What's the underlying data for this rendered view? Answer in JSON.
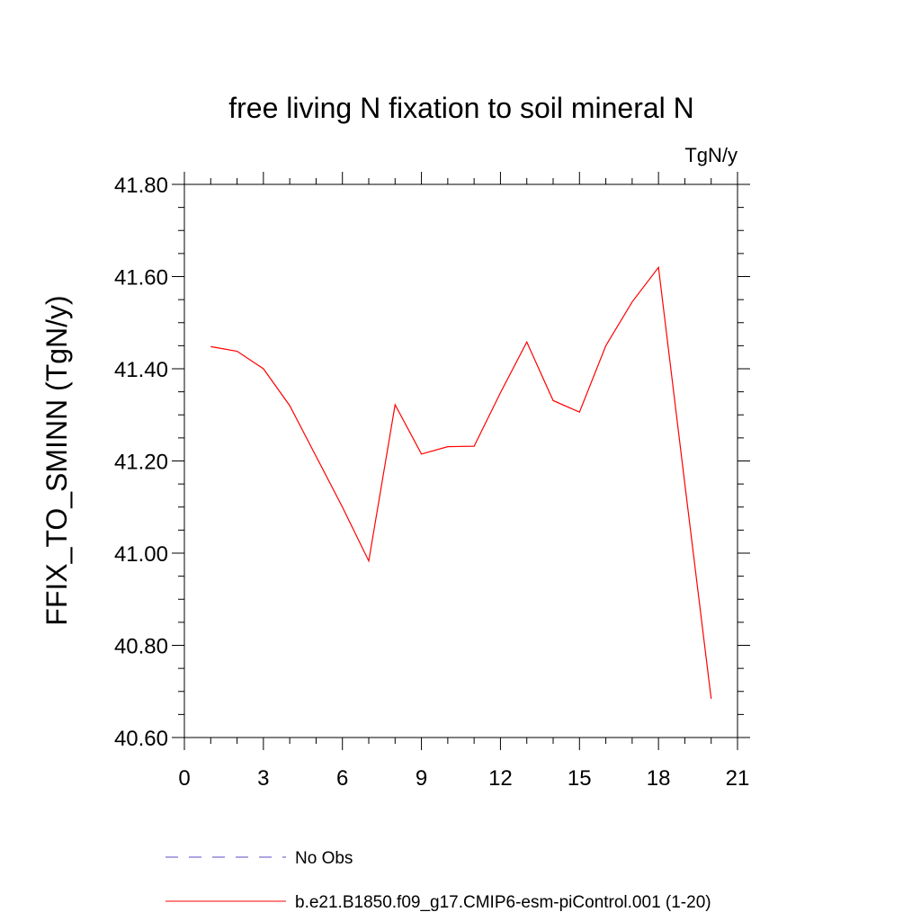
{
  "chart_data": {
    "type": "line",
    "title": "free living N fixation to soil mineral N",
    "units": "TgN/y",
    "xlabel": "",
    "ylabel": "FFIX_TO_SMINN  (TgN/y)",
    "xlim": [
      0,
      21
    ],
    "ylim": [
      40.6,
      41.8
    ],
    "x_ticks": [
      0,
      3,
      6,
      9,
      12,
      15,
      18,
      21
    ],
    "y_ticks": [
      40.6,
      40.8,
      41.0,
      41.2,
      41.4,
      41.6,
      41.8
    ],
    "y_tick_labels": [
      "40.60",
      "40.80",
      "41.00",
      "41.20",
      "41.40",
      "41.60",
      "41.80"
    ],
    "grid": false,
    "series": [
      {
        "name": "b.e21.B1850.f09_g17.CMIP6-esm-piControl.001 (1-20)",
        "color": "#ff0000",
        "style": "solid",
        "x": [
          1,
          2,
          3,
          4,
          5,
          6,
          7,
          8,
          9,
          10,
          11,
          12,
          13,
          14,
          15,
          16,
          17,
          18,
          19,
          20
        ],
        "values": [
          41.448,
          41.438,
          41.4,
          41.32,
          41.21,
          41.1,
          40.983,
          41.322,
          41.215,
          41.231,
          41.232,
          41.348,
          41.458,
          41.331,
          41.306,
          41.45,
          41.545,
          41.62,
          41.15,
          40.684
        ]
      }
    ],
    "legend": [
      {
        "label": "No Obs",
        "color": "#7b6fd0",
        "style": "dashed"
      },
      {
        "label": "b.e21.B1850.f09_g17.CMIP6-esm-piControl.001 (1-20)",
        "color": "#ff0000",
        "style": "solid"
      }
    ],
    "legend_position": "bottom"
  }
}
